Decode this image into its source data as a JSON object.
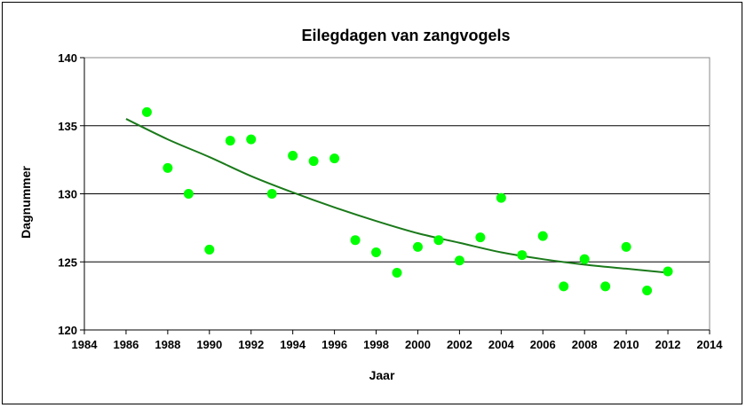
{
  "chart_data": {
    "type": "scatter",
    "title": "Eilegdagen van zangvogels",
    "xlabel": "Jaar",
    "ylabel": "Dagnummer",
    "xlim": [
      1984,
      2014
    ],
    "ylim": [
      120,
      140
    ],
    "xticks": [
      "1984",
      "1986",
      "1988",
      "1990",
      "1992",
      "1994",
      "1996",
      "1998",
      "2000",
      "2002",
      "2004",
      "2006",
      "2008",
      "2010",
      "2012",
      "2014"
    ],
    "yticks": [
      "120",
      "125",
      "130",
      "135",
      "140"
    ],
    "grid": "horizontal",
    "colors": {
      "points": "#00ff00",
      "trend": "#1a7a1a",
      "grid": "#000000"
    },
    "points": [
      {
        "x": 1987,
        "y": 136.0
      },
      {
        "x": 1988,
        "y": 131.9
      },
      {
        "x": 1989,
        "y": 130.0
      },
      {
        "x": 1990,
        "y": 125.9
      },
      {
        "x": 1991,
        "y": 133.9
      },
      {
        "x": 1992,
        "y": 134.0
      },
      {
        "x": 1993,
        "y": 130.0
      },
      {
        "x": 1994,
        "y": 132.8
      },
      {
        "x": 1995,
        "y": 132.4
      },
      {
        "x": 1996,
        "y": 132.6
      },
      {
        "x": 1997,
        "y": 126.6
      },
      {
        "x": 1998,
        "y": 125.7
      },
      {
        "x": 1999,
        "y": 124.2
      },
      {
        "x": 2000,
        "y": 126.1
      },
      {
        "x": 2001,
        "y": 126.6
      },
      {
        "x": 2002,
        "y": 125.1
      },
      {
        "x": 2003,
        "y": 126.8
      },
      {
        "x": 2004,
        "y": 129.7
      },
      {
        "x": 2005,
        "y": 125.5
      },
      {
        "x": 2006,
        "y": 126.9
      },
      {
        "x": 2007,
        "y": 123.2
      },
      {
        "x": 2008,
        "y": 125.2
      },
      {
        "x": 2009,
        "y": 123.2
      },
      {
        "x": 2010,
        "y": 126.1
      },
      {
        "x": 2011,
        "y": 122.9
      },
      {
        "x": 2012,
        "y": 124.3
      }
    ],
    "trendline": {
      "type": "polynomial",
      "x": [
        1986,
        1988,
        1990,
        1992,
        1994,
        1996,
        1998,
        2000,
        2002,
        2004,
        2006,
        2008,
        2010,
        2012
      ],
      "y": [
        135.5,
        134.0,
        132.7,
        131.3,
        130.1,
        129.0,
        128.0,
        127.1,
        126.4,
        125.7,
        125.2,
        124.8,
        124.5,
        124.2
      ]
    }
  }
}
